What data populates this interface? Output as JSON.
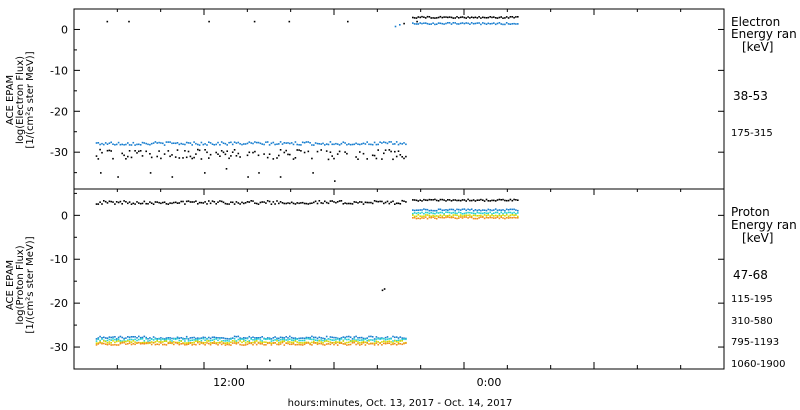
{
  "xlabel": "hours:minutes, Oct. 13, 2017 - Oct. 14, 2017",
  "x_ticks": [
    "12:00",
    "0:00"
  ],
  "chart_data": [
    {
      "type": "scatter",
      "ylabel_lines": [
        "ACE EPAM",
        "log(Electron Flux)",
        "[1/(cm²s ster MeV)]"
      ],
      "ylim": [
        -39,
        5
      ],
      "y_ticks": [
        0,
        -10,
        -20,
        -30
      ],
      "legend_title_lines": [
        "Electron",
        "Energy ran",
        "[keV]"
      ],
      "series": [
        {
          "name": "38-53",
          "color": "#000000",
          "segments": [
            {
              "x": [
                1.5,
                2.5,
                6.2,
                8.3,
                9.9,
                12.6,
                15.2,
                15.8
              ],
              "y": [
                2,
                2,
                2,
                2,
                2,
                2,
                1.5,
                2
              ]
            },
            {
              "x_from": 1.0,
              "x_to": 15.3,
              "y_center": -30.5,
              "jitter": 1.2
            },
            {
              "x": [
                1.2,
                2.0,
                3.5,
                4.5,
                6.0,
                7.0,
                8.0,
                8.5,
                9.5,
                11.0,
                12.0
              ],
              "y": [
                -35,
                -36,
                -35,
                -36,
                -35,
                -34,
                -36,
                -35,
                -36,
                -35,
                -37
              ]
            },
            {
              "x_from": 15.6,
              "x_to": 20.5,
              "y_center": 3,
              "jitter": 0.2
            }
          ]
        },
        {
          "name": "175-315",
          "color": "#1a7fd0",
          "segments": [
            {
              "x_from": 1.0,
              "x_to": 15.3,
              "y_center": -27.8,
              "jitter": 0.4
            },
            {
              "x": [
                14.8,
                15.0
              ],
              "y": [
                0.8,
                1.2
              ]
            },
            {
              "x_from": 15.6,
              "x_to": 20.5,
              "y_center": 1.5,
              "jitter": 0.2
            }
          ]
        }
      ]
    },
    {
      "type": "scatter",
      "ylabel_lines": [
        "ACE EPAM",
        "log(Proton Flux)",
        "[1/(cm²s ster MeV)]"
      ],
      "ylim": [
        -35,
        6
      ],
      "y_ticks": [
        0,
        -10,
        -20,
        -30
      ],
      "legend_title_lines": [
        "Proton",
        "Energy ran",
        "[keV]"
      ],
      "series": [
        {
          "name": "47-68",
          "color": "#000000",
          "segments": [
            {
              "x_from": 1.0,
              "x_to": 15.3,
              "y_center": 3,
              "jitter": 0.4
            },
            {
              "x_from": 15.6,
              "x_to": 20.5,
              "y_center": 3.5,
              "jitter": 0.2
            },
            {
              "x": [
                14.2,
                14.3,
                9.0
              ],
              "y": [
                -17,
                -16.7,
                -33
              ]
            }
          ]
        },
        {
          "name": "115-195",
          "color": "#1a7fd0",
          "segments": [
            {
              "x_from": 1.0,
              "x_to": 15.3,
              "y_center": -27.8,
              "jitter": 0.3
            },
            {
              "x_from": 15.6,
              "x_to": 20.5,
              "y_center": 1.3,
              "jitter": 0.2
            }
          ]
        },
        {
          "name": "310-580",
          "color": "#2ad0d0",
          "segments": [
            {
              "x_from": 1.0,
              "x_to": 15.3,
              "y_center": -28.3,
              "jitter": 0.3
            },
            {
              "x_from": 15.6,
              "x_to": 20.5,
              "y_center": 0.6,
              "jitter": 0.2
            }
          ]
        },
        {
          "name": "795-1193",
          "color": "#d8d800",
          "segments": [
            {
              "x_from": 1.0,
              "x_to": 15.3,
              "y_center": -28.8,
              "jitter": 0.3
            },
            {
              "x_from": 15.6,
              "x_to": 20.5,
              "y_center": 0,
              "jitter": 0.2
            }
          ]
        },
        {
          "name": "1060-1900",
          "color": "#f0901a",
          "segments": [
            {
              "x_from": 1.0,
              "x_to": 15.3,
              "y_center": -29.2,
              "jitter": 0.3
            },
            {
              "x_from": 15.6,
              "x_to": 20.5,
              "y_center": -0.5,
              "jitter": 0.2
            }
          ]
        }
      ]
    }
  ]
}
